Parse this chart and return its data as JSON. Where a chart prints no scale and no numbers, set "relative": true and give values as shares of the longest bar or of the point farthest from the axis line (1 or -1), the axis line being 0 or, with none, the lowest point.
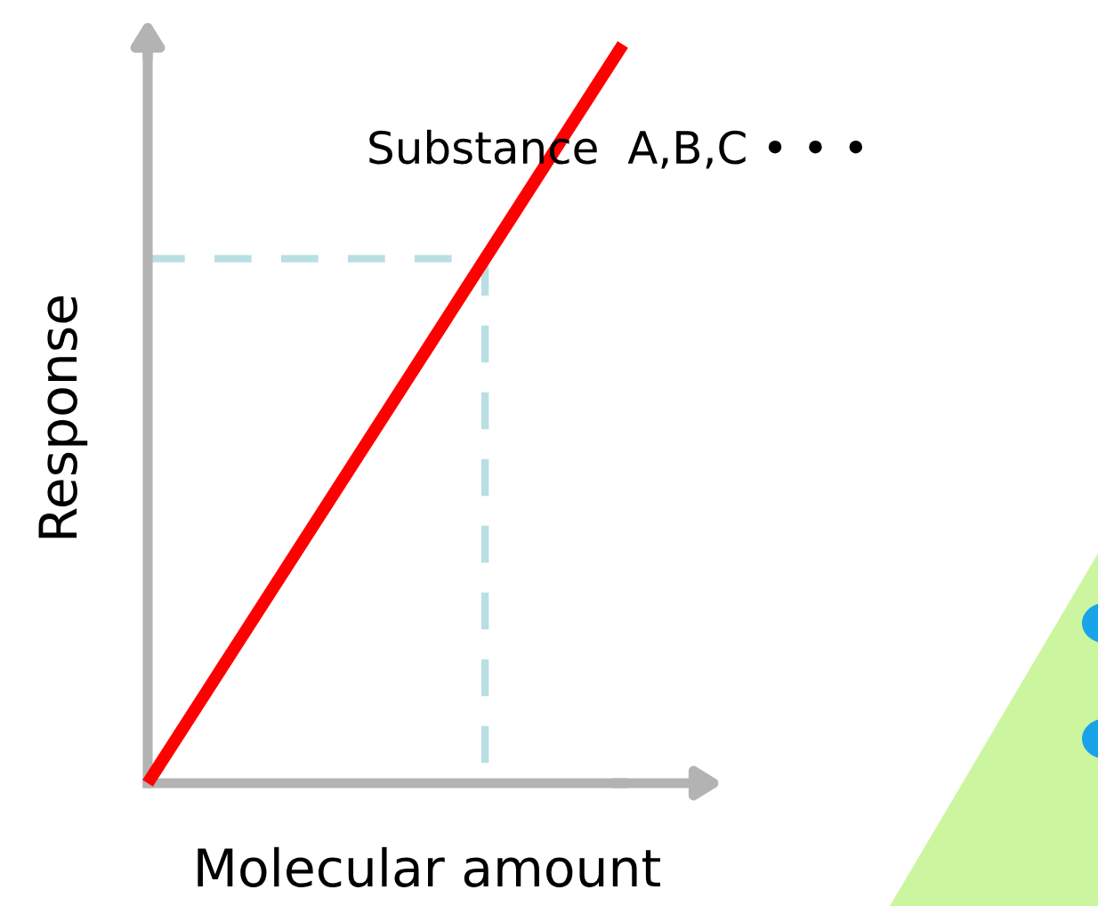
{
  "chart_data": {
    "type": "line",
    "relative": true,
    "xlabel": "Molecular amount",
    "ylabel": "Response",
    "annotations": [
      "Substance  A,B,C • • •"
    ],
    "categories": [
      null,
      null
    ],
    "series": [
      {
        "values": [
          0,
          1
        ],
        "color": "#ff0000"
      }
    ],
    "ref_lines": [
      {
        "axis": "y",
        "value": 0.71,
        "color": "#b9dfe3",
        "line_style": "dashed"
      }
    ]
  }
}
